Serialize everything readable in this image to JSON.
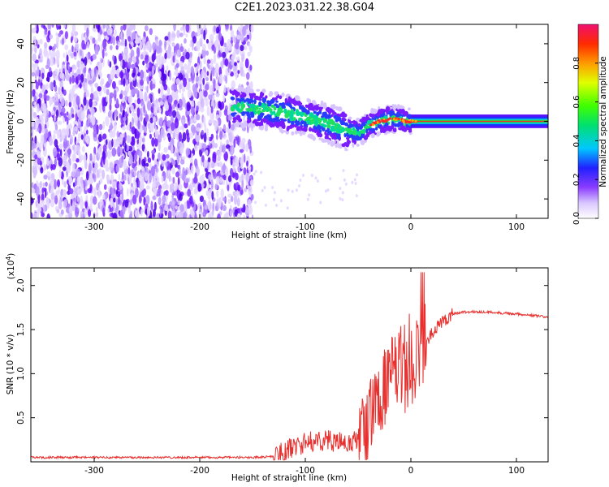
{
  "title": "C2E1.2023.031.22.38.G04",
  "chart_data": [
    {
      "type": "heatmap",
      "xlabel": "Height of straight line (km)",
      "ylabel": "Frequency (Hz)",
      "xlim": [
        -360,
        130
      ],
      "ylim": [
        -50,
        50
      ],
      "xticks": [
        -300,
        -200,
        -100,
        0,
        100
      ],
      "xtick_labels": [
        "-300",
        "-200",
        "-100",
        "0",
        "100"
      ],
      "yticks": [
        -40,
        -20,
        0,
        20,
        40
      ],
      "ytick_labels": [
        "-40",
        "-20",
        "0",
        "20",
        "40"
      ],
      "colorbar": {
        "label": "Normalized spectral amplitude",
        "range": [
          0,
          1
        ],
        "ticks": [
          0.0,
          0.2,
          0.4,
          0.6,
          0.8
        ],
        "tick_labels": [
          "0.0",
          "0.2",
          "0.4",
          "0.6",
          "0.8"
        ]
      },
      "feature_trace": {
        "x": [
          -175,
          -150,
          -125,
          -100,
          -80,
          -60,
          -50,
          -40,
          -30,
          -20,
          -10,
          -5,
          0,
          50,
          130
        ],
        "y": [
          8,
          7,
          5,
          2,
          -1,
          -5,
          -6,
          -2,
          0,
          1,
          1,
          0,
          0,
          0,
          0
        ]
      }
    },
    {
      "type": "line",
      "xlabel": "Height of straight line (km)",
      "ylabel": "SNR (10 * v/v)",
      "y_multiplier_label": "(x10",
      "y_multiplier_exp": "4",
      "y_multiplier_close": ")",
      "xlim": [
        -360,
        130
      ],
      "ylim": [
        0,
        2.2
      ],
      "xticks": [
        -300,
        -200,
        -100,
        0,
        100
      ],
      "xtick_labels": [
        "-300",
        "-200",
        "-100",
        "0",
        "100"
      ],
      "yticks": [
        0.5,
        1.0,
        1.5,
        2.0
      ],
      "ytick_labels": [
        "0.5",
        "1.0",
        "1.5",
        "2.0"
      ],
      "series": [
        {
          "name": "SNR",
          "color": "#e8302e",
          "x": [
            -360,
            -250,
            -150,
            -130,
            -120,
            -100,
            -80,
            -60,
            -50,
            -40,
            -30,
            -20,
            -10,
            0,
            10,
            20,
            30,
            40,
            50,
            70,
            100,
            130
          ],
          "y": [
            0.05,
            0.05,
            0.05,
            0.06,
            0.12,
            0.22,
            0.25,
            0.2,
            0.25,
            0.45,
            0.75,
            0.95,
            1.05,
            1.15,
            1.25,
            1.45,
            1.6,
            1.68,
            1.7,
            1.7,
            1.68,
            1.64
          ]
        }
      ]
    }
  ]
}
